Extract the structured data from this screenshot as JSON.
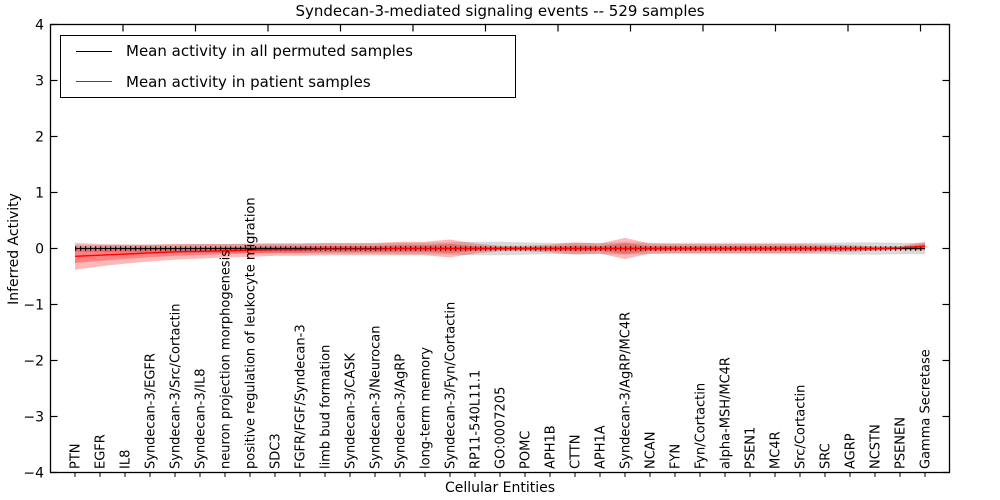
{
  "title": "Syndecan-3-mediated signaling events -- 529 samples",
  "chart_data": {
    "type": "line",
    "title": "Syndecan-3-mediated signaling events -- 529 samples",
    "xlabel": "Cellular Entities",
    "ylabel": "Inferred Activity",
    "ylim": [
      -4,
      4
    ],
    "yticks": [
      4,
      3,
      2,
      1,
      0,
      -1,
      -2,
      -3,
      -4
    ],
    "ytick_labels": [
      "4",
      "3",
      "2",
      "1",
      "0",
      "−1",
      "−2",
      "−3",
      "−4"
    ],
    "grid": false,
    "legend_position": "upper left",
    "legend": [
      {
        "label": "Mean activity in all permuted samples",
        "color": "#000000"
      },
      {
        "label": "Mean activity in patient samples",
        "color": "#ff0000"
      }
    ],
    "categories": [
      "PTN",
      "EGFR",
      "IL8",
      "Syndecan-3/EGFR",
      "Syndecan-3/Src/Cortactin",
      "Syndecan-3/IL8",
      "neuron projection morphogenesis",
      "positive regulation of leukocyte migration",
      "SDC3",
      "FGFR/FGF/Syndecan-3",
      "limb bud formation",
      "Syndecan-3/CASK",
      "Syndecan-3/Neurocan",
      "Syndecan-3/AgRP",
      "long-term memory",
      "Syndecan-3/Fyn/Cortactin",
      "RP11-540L11.1",
      "GO:0007205",
      "POMC",
      "APH1B",
      "CTTN",
      "APH1A",
      "Syndecan-3/AgRP/MC4R",
      "NCAN",
      "FYN",
      "Fyn/Cortactin",
      "alpha-MSH/MC4R",
      "PSEN1",
      "MC4R",
      "Src/Cortactin",
      "SRC",
      "AGRP",
      "NCSTN",
      "PSENEN",
      "Gamma Secretase"
    ],
    "series": [
      {
        "name": "Mean activity in all permuted samples",
        "color": "#000000",
        "values": [
          0,
          0,
          0,
          0,
          0,
          0,
          0,
          0,
          0,
          0,
          0,
          0,
          0,
          0,
          0,
          0,
          0,
          0,
          0,
          0,
          0,
          0,
          0,
          0,
          0,
          0,
          0,
          0,
          0,
          0,
          0,
          0,
          0,
          0,
          0
        ],
        "band_std": [
          0.06,
          0.06,
          0.07,
          0.07,
          0.07,
          0.08,
          0.08,
          0.08,
          0.09,
          0.09,
          0.09,
          0.09,
          0.09,
          0.1,
          0.1,
          0.11,
          0.12,
          0.12,
          0.11,
          0.1,
          0.1,
          0.1,
          0.11,
          0.1,
          0.1,
          0.1,
          0.1,
          0.1,
          0.1,
          0.1,
          0.1,
          0.11,
          0.11,
          0.1,
          0.1
        ]
      },
      {
        "name": "Mean activity in patient samples",
        "color": "#ff0000",
        "values": [
          -0.14,
          -0.12,
          -0.1,
          -0.08,
          -0.06,
          -0.05,
          -0.04,
          -0.03,
          -0.02,
          -0.02,
          -0.01,
          -0.01,
          -0.01,
          0,
          0,
          0,
          0,
          0,
          0,
          0,
          0,
          0,
          0,
          0,
          0,
          0,
          0,
          0,
          0,
          0,
          0,
          0,
          0,
          0.01,
          0.04
        ],
        "band_std": [
          0.24,
          0.2,
          0.17,
          0.15,
          0.14,
          0.13,
          0.12,
          0.12,
          0.11,
          0.11,
          0.11,
          0.11,
          0.11,
          0.12,
          0.12,
          0.16,
          0.09,
          0.05,
          0.05,
          0.07,
          0.11,
          0.09,
          0.19,
          0.09,
          0.08,
          0.08,
          0.08,
          0.08,
          0.08,
          0.08,
          0.07,
          0.06,
          0.04,
          0.03,
          0.08
        ]
      }
    ]
  }
}
